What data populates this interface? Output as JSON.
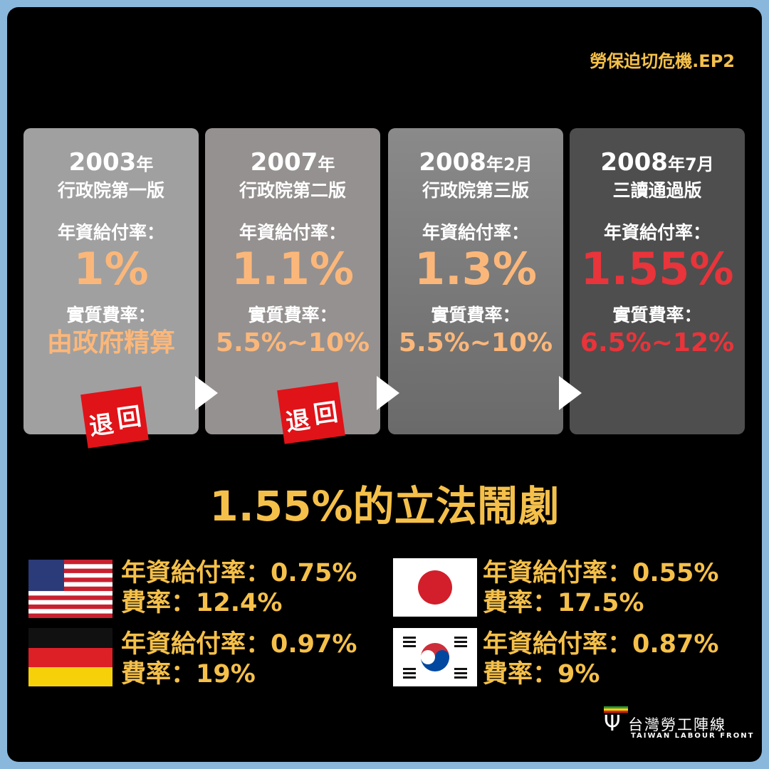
{
  "series_tag": "勞保迫切危機.EP2",
  "cards": [
    {
      "year": "2003",
      "year_suffix": "年",
      "version": "行政院第一版",
      "rate_label": "年資給付率：",
      "rate": "1%",
      "fee_label": "實質費率：",
      "fee": "由政府精算",
      "stamp": "退回"
    },
    {
      "year": "2007",
      "year_suffix": "年",
      "version": "行政院第二版",
      "rate_label": "年資給付率：",
      "rate": "1.1%",
      "fee_label": "實質費率：",
      "fee": "5.5%~10%",
      "stamp": "退回"
    },
    {
      "year": "2008",
      "year_suffix": "年2月",
      "version": "行政院第三版",
      "rate_label": "年資給付率：",
      "rate": "1.3%",
      "fee_label": "實質費率：",
      "fee": "5.5%~10%"
    },
    {
      "year": "2008",
      "year_suffix": "年7月",
      "version": "三讀通過版",
      "rate_label": "年資給付率：",
      "rate": "1.55%",
      "fee_label": "實質費率：",
      "fee": "6.5%~12%"
    }
  ],
  "headline": "1.55%的立法鬧劇",
  "countries": [
    {
      "flag": "usa-flag",
      "rate": "年資給付率：0.75%",
      "fee": "費率：12.4%"
    },
    {
      "flag": "japan-flag",
      "rate": "年資給付率：0.55%",
      "fee": "費率：17.5%"
    },
    {
      "flag": "germany-flag",
      "rate": "年資給付率：0.97%",
      "fee": "費率：19%"
    },
    {
      "flag": "korea-flag",
      "rate": "年資給付率：0.87%",
      "fee": "費率：9%"
    }
  ],
  "logo": {
    "name": "台灣勞工陣線",
    "english": "TAIWAN LABOUR FRONT"
  },
  "colors": {
    "accent": "#f5c04a",
    "orange": "#fbb77a",
    "red": "#e8343a",
    "border": "#8ab8dc"
  }
}
